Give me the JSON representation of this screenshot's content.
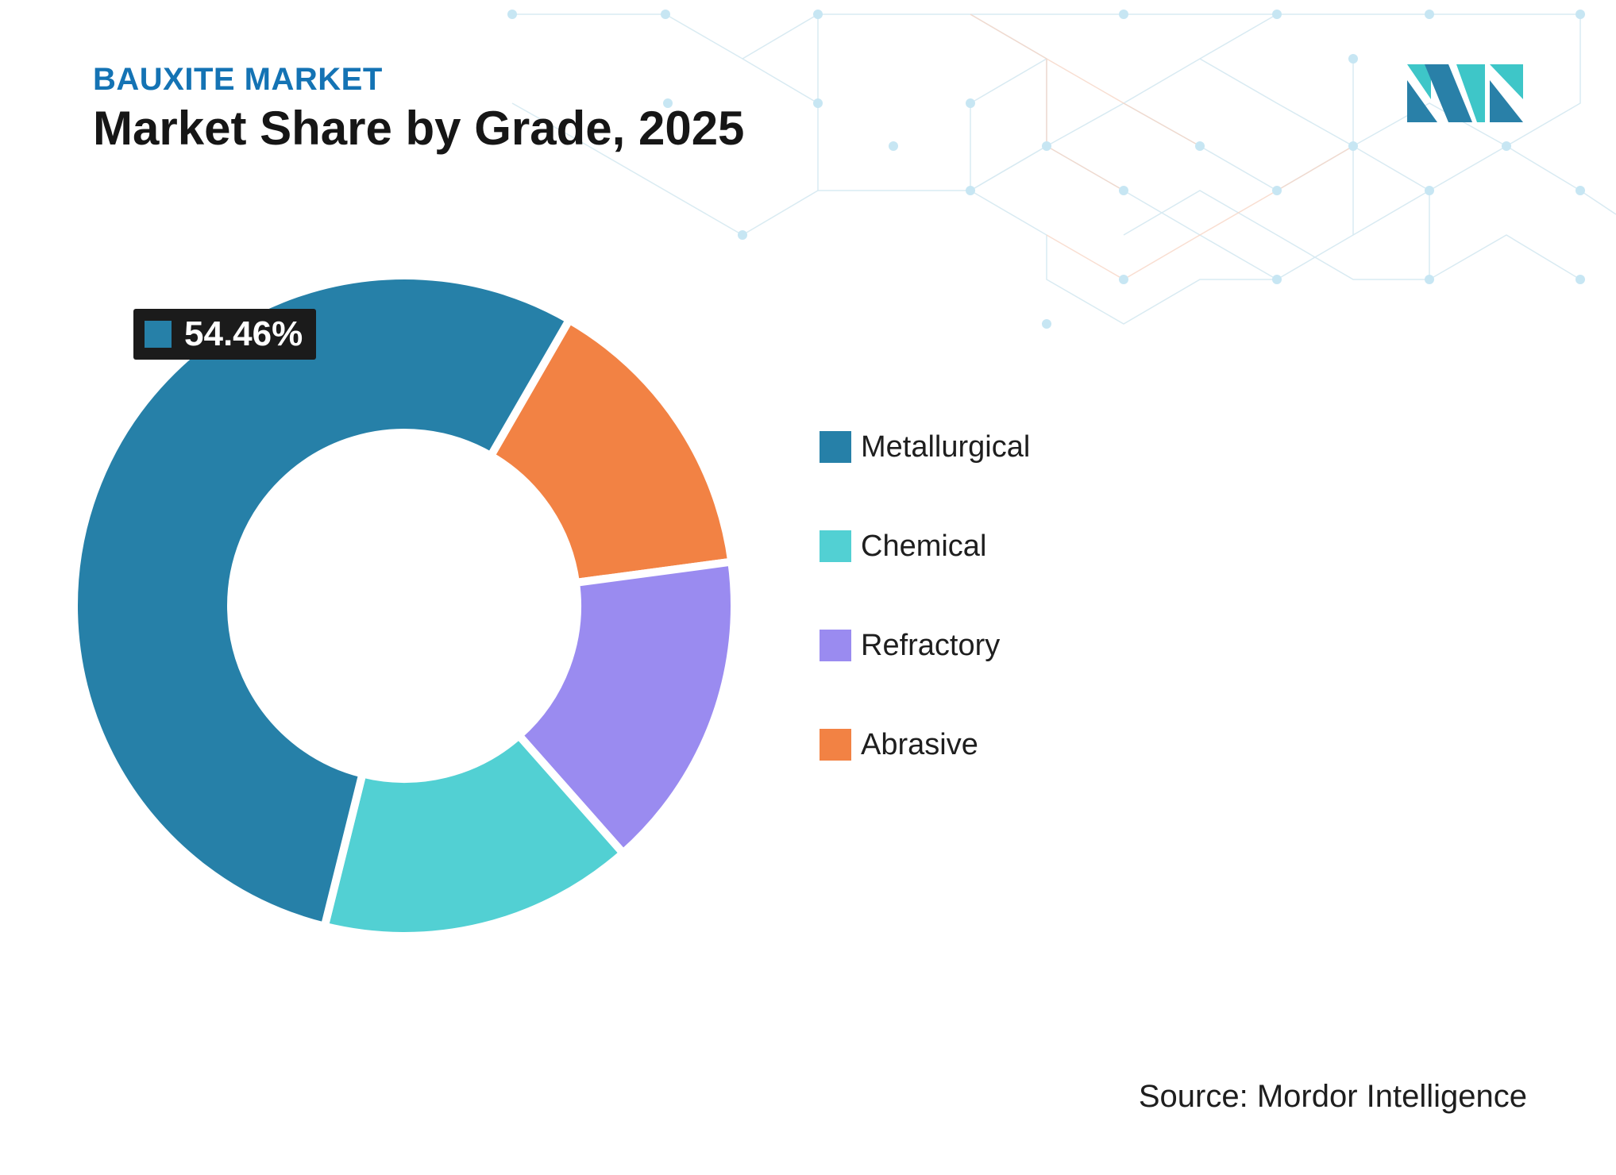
{
  "header": {
    "eyebrow": "BAUXITE MARKET",
    "title": "Market Share by Grade, 2025"
  },
  "source": "Source: Mordor Intelligence",
  "brand": {
    "logo_icon": "mordor-intelligence-logo-icon",
    "colors": [
      "#2980a8",
      "#3ec6c8"
    ]
  },
  "chart_data": {
    "type": "pie",
    "variant": "donut",
    "categories": [
      "Metallurgical",
      "Chemical",
      "Refractory",
      "Abrasive"
    ],
    "values": [
      54.46,
      15.4,
      15.6,
      14.54
    ],
    "colors": [
      "#2680a8",
      "#52d0d3",
      "#9a8bf0",
      "#f28244"
    ],
    "data_labels": [
      {
        "category": "Metallurgical",
        "text": "54.46%"
      }
    ],
    "legend_position": "right",
    "title": "",
    "slice_order_clockwise_from_top": [
      "Abrasive",
      "Refractory",
      "Chemical",
      "Metallurgical"
    ]
  }
}
